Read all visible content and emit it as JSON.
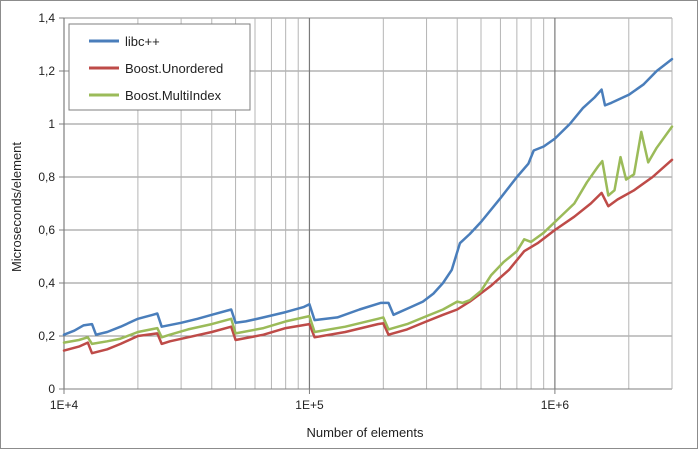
{
  "chart_data": {
    "type": "line",
    "title": "",
    "xlabel": "Number of elements",
    "ylabel": "Microseconds/element",
    "x_scale": "log",
    "xlim": [
      10000,
      3000000
    ],
    "ylim": [
      0,
      1.4
    ],
    "grid": "on",
    "legend_position": "top-left",
    "x_tick_labels": [
      "1E+4",
      "1E+5",
      "1E+6"
    ],
    "x_tick_values": [
      10000,
      100000,
      1000000
    ],
    "y_tick_labels": [
      "0",
      "0,2",
      "0,4",
      "0,6",
      "0,8",
      "1",
      "1,2",
      "1,4"
    ],
    "y_tick_values": [
      0,
      0.2,
      0.4,
      0.6,
      0.8,
      1.0,
      1.2,
      1.4
    ],
    "series": [
      {
        "name": "libc++",
        "color": "#4a7ebb",
        "x": [
          10000,
          11000,
          12000,
          13000,
          13500,
          15000,
          17000,
          20000,
          23000,
          24000,
          25000,
          30000,
          35000,
          40000,
          48000,
          50000,
          55000,
          65000,
          80000,
          95000,
          100000,
          105000,
          130000,
          160000,
          195000,
          210000,
          220000,
          260000,
          290000,
          320000,
          350000,
          380000,
          410000,
          450000,
          500000,
          600000,
          700000,
          780000,
          820000,
          900000,
          1000000,
          1150000,
          1300000,
          1450000,
          1550000,
          1600000,
          1700000,
          2000000,
          2300000,
          2600000,
          3000000
        ],
        "y": [
          0.205,
          0.22,
          0.24,
          0.245,
          0.205,
          0.215,
          0.235,
          0.265,
          0.28,
          0.285,
          0.235,
          0.25,
          0.265,
          0.28,
          0.3,
          0.25,
          0.255,
          0.27,
          0.29,
          0.31,
          0.32,
          0.26,
          0.27,
          0.3,
          0.325,
          0.325,
          0.28,
          0.31,
          0.33,
          0.36,
          0.4,
          0.45,
          0.55,
          0.585,
          0.63,
          0.72,
          0.8,
          0.85,
          0.9,
          0.915,
          0.945,
          1.0,
          1.06,
          1.1,
          1.13,
          1.07,
          1.08,
          1.11,
          1.15,
          1.2,
          1.245
        ]
      },
      {
        "name": "Boost.Unordered",
        "color": "#be4b48",
        "x": [
          10000,
          11500,
          12500,
          13000,
          15000,
          17000,
          20000,
          24000,
          25000,
          27000,
          32000,
          40000,
          48000,
          50000,
          65000,
          80000,
          100000,
          105000,
          140000,
          190000,
          200000,
          210000,
          250000,
          300000,
          350000,
          400000,
          450000,
          550000,
          650000,
          750000,
          850000,
          1000000,
          1200000,
          1400000,
          1550000,
          1650000,
          1800000,
          2100000,
          2500000,
          3000000
        ],
        "y": [
          0.145,
          0.16,
          0.175,
          0.135,
          0.15,
          0.17,
          0.2,
          0.21,
          0.17,
          0.18,
          0.195,
          0.215,
          0.235,
          0.185,
          0.205,
          0.23,
          0.245,
          0.195,
          0.215,
          0.245,
          0.248,
          0.205,
          0.225,
          0.255,
          0.28,
          0.3,
          0.33,
          0.39,
          0.45,
          0.52,
          0.55,
          0.6,
          0.65,
          0.7,
          0.74,
          0.69,
          0.715,
          0.75,
          0.8,
          0.865
        ]
      },
      {
        "name": "Boost.MultiIndex",
        "color": "#9bbb59",
        "x": [
          10000,
          11500,
          12500,
          13000,
          15000,
          17000,
          20000,
          24000,
          25000,
          27000,
          32000,
          40000,
          48000,
          50000,
          65000,
          80000,
          100000,
          105000,
          140000,
          190000,
          200000,
          210000,
          250000,
          300000,
          350000,
          400000,
          420000,
          450000,
          500000,
          550000,
          620000,
          700000,
          750000,
          800000,
          900000,
          1000000,
          1200000,
          1350000,
          1500000,
          1560000,
          1650000,
          1750000,
          1850000,
          1950000,
          2100000,
          2250000,
          2400000,
          2600000,
          3000000
        ],
        "y": [
          0.175,
          0.185,
          0.195,
          0.17,
          0.18,
          0.19,
          0.215,
          0.23,
          0.195,
          0.205,
          0.225,
          0.245,
          0.265,
          0.21,
          0.23,
          0.255,
          0.275,
          0.215,
          0.235,
          0.265,
          0.27,
          0.225,
          0.245,
          0.275,
          0.3,
          0.33,
          0.325,
          0.335,
          0.37,
          0.43,
          0.48,
          0.52,
          0.565,
          0.555,
          0.59,
          0.63,
          0.7,
          0.78,
          0.84,
          0.86,
          0.73,
          0.75,
          0.875,
          0.79,
          0.81,
          0.97,
          0.855,
          0.91,
          0.99
        ]
      }
    ]
  }
}
